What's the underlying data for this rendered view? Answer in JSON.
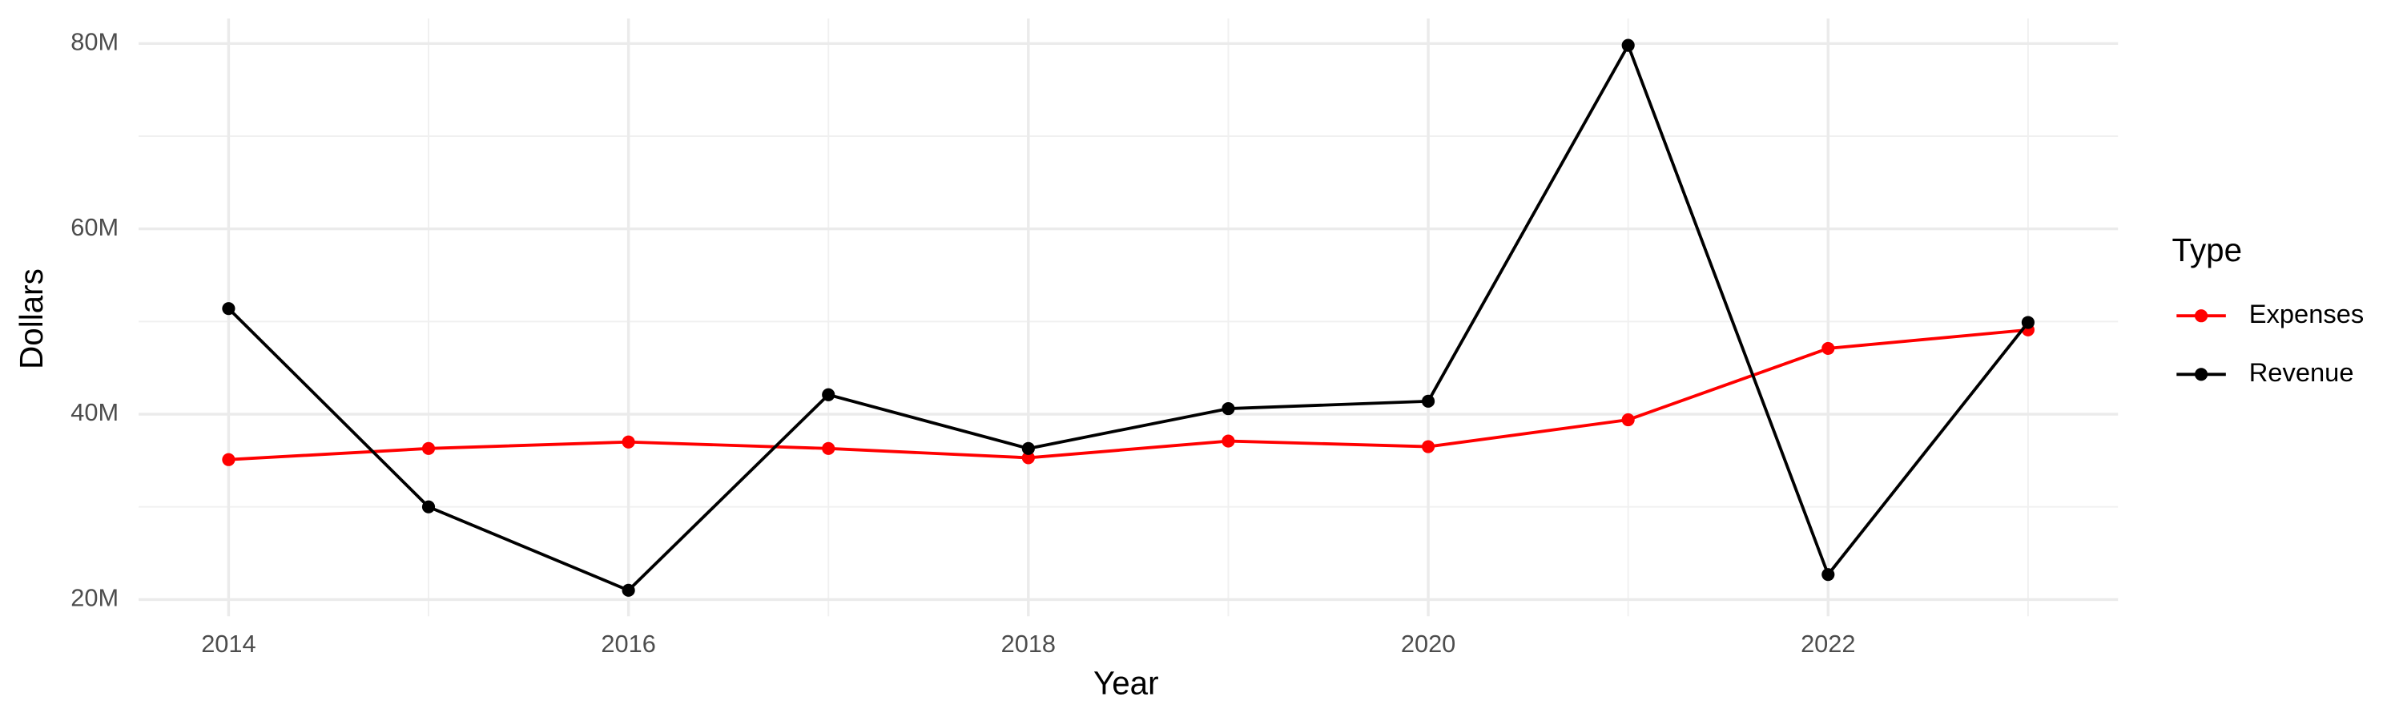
{
  "chart_data": {
    "type": "line",
    "x_label": "Year",
    "y_label": "Dollars",
    "legend_title": "Type",
    "legend_position": "right",
    "grid": true,
    "x": [
      2014,
      2015,
      2016,
      2017,
      2018,
      2019,
      2020,
      2021,
      2022,
      2023
    ],
    "series": [
      {
        "name": "Expenses",
        "color": "#ff0000",
        "values": [
          35100000,
          36300000,
          37000000,
          36300000,
          35300000,
          37100000,
          36500000,
          39400000,
          47100000,
          49100000
        ]
      },
      {
        "name": "Revenue",
        "color": "#000000",
        "values": [
          51400000,
          30000000,
          21000000,
          42100000,
          36300000,
          40600000,
          41400000,
          79800000,
          22700000,
          49900000
        ]
      }
    ],
    "xlim": [
      2013.55,
      2023.45
    ],
    "xticks": [
      2014,
      2016,
      2018,
      2020,
      2022
    ],
    "ylim": [
      18200000,
      82700000
    ],
    "yticks": [
      {
        "value": 20000000,
        "label": "20M"
      },
      {
        "value": 40000000,
        "label": "40M"
      },
      {
        "value": 60000000,
        "label": "60M"
      },
      {
        "value": 80000000,
        "label": "80M"
      }
    ]
  }
}
